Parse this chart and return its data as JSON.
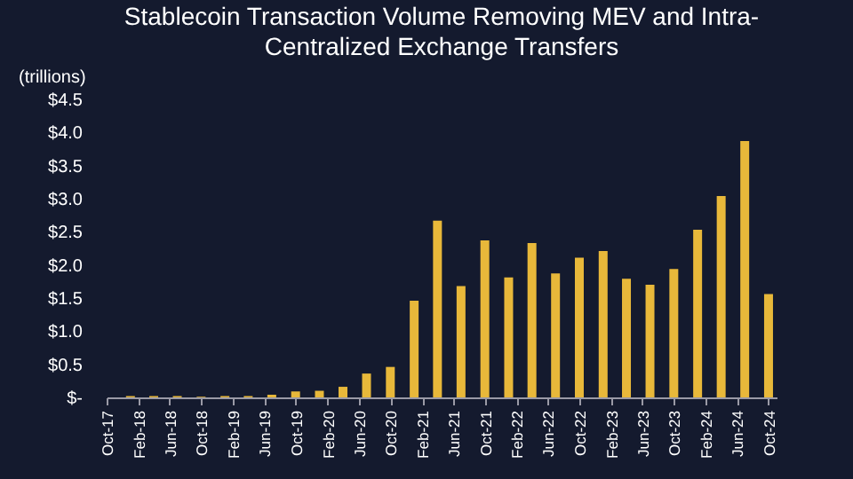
{
  "chart_data": {
    "type": "bar",
    "title": [
      "Stablecoin Transaction Volume Removing MEV and Intra-",
      "Centralized Exchange Transfers"
    ],
    "ylabel": "(trillions)",
    "x": [
      "2018-01",
      "2018-04",
      "2018-07",
      "2018-10",
      "2019-01",
      "2019-04",
      "2019-07",
      "2019-10",
      "2020-01",
      "2020-04",
      "2020-07",
      "2020-10",
      "2021-01",
      "2021-04",
      "2021-07",
      "2021-10",
      "2022-01",
      "2022-04",
      "2022-07",
      "2022-10",
      "2023-01",
      "2023-04",
      "2023-07",
      "2023-10",
      "2024-01",
      "2024-04",
      "2024-07",
      "2024-10"
    ],
    "values": [
      0.02,
      0.02,
      0.02,
      0.01,
      0.02,
      0.02,
      0.04,
      0.09,
      0.1,
      0.16,
      0.36,
      0.46,
      1.46,
      2.67,
      1.68,
      2.37,
      1.81,
      2.33,
      1.87,
      2.11,
      2.21,
      1.79,
      1.7,
      1.94,
      2.53,
      3.04,
      3.87,
      1.56
    ],
    "color": "#e8b83a",
    "xlim": [
      "2017-10",
      "2024-11"
    ],
    "xticks": [
      {
        "value": "2017-10",
        "label": "Oct-17"
      },
      {
        "value": "2018-02",
        "label": "Feb-18"
      },
      {
        "value": "2018-06",
        "label": "Jun-18"
      },
      {
        "value": "2018-10",
        "label": "Oct-18"
      },
      {
        "value": "2019-02",
        "label": "Feb-19"
      },
      {
        "value": "2019-06",
        "label": "Jun-19"
      },
      {
        "value": "2019-10",
        "label": "Oct-19"
      },
      {
        "value": "2020-02",
        "label": "Feb-20"
      },
      {
        "value": "2020-06",
        "label": "Jun-20"
      },
      {
        "value": "2020-10",
        "label": "Oct-20"
      },
      {
        "value": "2021-02",
        "label": "Feb-21"
      },
      {
        "value": "2021-06",
        "label": "Jun-21"
      },
      {
        "value": "2021-10",
        "label": "Oct-21"
      },
      {
        "value": "2022-02",
        "label": "Feb-22"
      },
      {
        "value": "2022-06",
        "label": "Jun-22"
      },
      {
        "value": "2022-10",
        "label": "Oct-22"
      },
      {
        "value": "2023-02",
        "label": "Feb-23"
      },
      {
        "value": "2023-06",
        "label": "Jun-23"
      },
      {
        "value": "2023-10",
        "label": "Oct-23"
      },
      {
        "value": "2024-02",
        "label": "Feb-24"
      },
      {
        "value": "2024-06",
        "label": "Jun-24"
      },
      {
        "value": "2024-10",
        "label": "Oct-24"
      }
    ],
    "ylim": [
      0,
      4.5
    ],
    "yticks": [
      {
        "value": 0,
        "label": "$-"
      },
      {
        "value": 0.5,
        "label": "$0.5"
      },
      {
        "value": 1,
        "label": "$1.0"
      },
      {
        "value": 1.5,
        "label": "$1.5"
      },
      {
        "value": 2,
        "label": "$2.0"
      },
      {
        "value": 2.5,
        "label": "$2.5"
      },
      {
        "value": 3,
        "label": "$3.0"
      },
      {
        "value": 3.5,
        "label": "$3.5"
      },
      {
        "value": 4,
        "label": "$4.0"
      },
      {
        "value": 4.5,
        "label": "$4.5"
      }
    ]
  }
}
